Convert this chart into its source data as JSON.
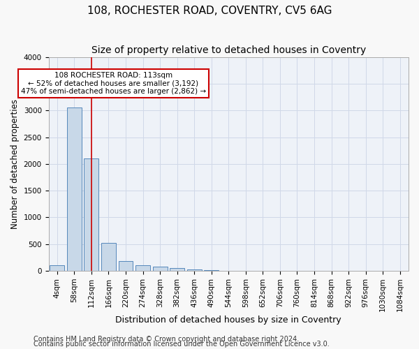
{
  "title1": "108, ROCHESTER ROAD, COVENTRY, CV5 6AG",
  "title2": "Size of property relative to detached houses in Coventry",
  "xlabel": "Distribution of detached houses by size in Coventry",
  "ylabel": "Number of detached properties",
  "bin_labels": [
    "4sqm",
    "58sqm",
    "112sqm",
    "166sqm",
    "220sqm",
    "274sqm",
    "328sqm",
    "382sqm",
    "436sqm",
    "490sqm",
    "544sqm",
    "598sqm",
    "652sqm",
    "706sqm",
    "760sqm",
    "814sqm",
    "868sqm",
    "922sqm",
    "976sqm",
    "1030sqm",
    "1084sqm"
  ],
  "bar_heights": [
    100,
    3050,
    2100,
    520,
    180,
    100,
    80,
    50,
    30,
    10,
    5,
    3,
    2,
    1,
    1,
    0,
    0,
    0,
    0,
    0,
    0
  ],
  "bar_color": "#c8d8e8",
  "bar_edge_color": "#5588bb",
  "bar_edge_width": 0.7,
  "grid_color": "#d0d8e8",
  "background_color": "#eef2f8",
  "fig_background_color": "#f8f8f8",
  "property_line_x": 2,
  "property_line_color": "#cc0000",
  "annotation_text": "108 ROCHESTER ROAD: 113sqm\n← 52% of detached houses are smaller (3,192)\n47% of semi-detached houses are larger (2,862) →",
  "annotation_box_color": "#ffffff",
  "annotation_box_edge_color": "#cc0000",
  "footer1": "Contains HM Land Registry data © Crown copyright and database right 2024.",
  "footer2": "Contains public sector information licensed under the Open Government Licence v3.0.",
  "ylim": [
    0,
    4000
  ],
  "yticks": [
    0,
    500,
    1000,
    1500,
    2000,
    2500,
    3000,
    3500,
    4000
  ],
  "title1_fontsize": 11,
  "title2_fontsize": 10,
  "xlabel_fontsize": 9,
  "ylabel_fontsize": 8.5,
  "tick_fontsize": 7.5,
  "annotation_fontsize": 7.5,
  "footer_fontsize": 7
}
